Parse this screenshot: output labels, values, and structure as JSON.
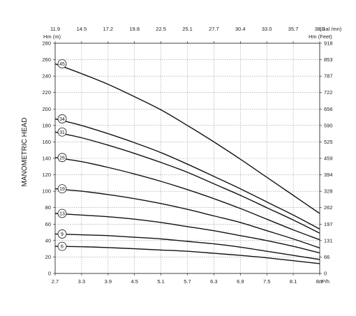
{
  "chart_data": {
    "type": "line",
    "title": "",
    "ylabel": "MANOMETRIC HEAD",
    "y_left_unit": "Hm (m)",
    "y_right_unit": "Hm (Feet)",
    "x_bottom_unit": "m³/h",
    "x_top_unit": "(Gal /mn)",
    "xlim": [
      2.7,
      8.7
    ],
    "ylim": [
      0,
      280
    ],
    "grid": true,
    "x_ticks_bottom": [
      {
        "value": 2.7,
        "label": "2.7"
      },
      {
        "value": 3.3,
        "label": "3.3"
      },
      {
        "value": 3.9,
        "label": "3.9"
      },
      {
        "value": 4.5,
        "label": "4.5"
      },
      {
        "value": 5.1,
        "label": "5.1"
      },
      {
        "value": 5.7,
        "label": "5.7"
      },
      {
        "value": 6.3,
        "label": "6.3"
      },
      {
        "value": 6.9,
        "label": "6.9"
      },
      {
        "value": 7.5,
        "label": "7.5"
      },
      {
        "value": 8.1,
        "label": "8.1"
      },
      {
        "value": 8.7,
        "label": "8.7"
      }
    ],
    "x_ticks_top": [
      "11.9",
      "14.5",
      "17.2",
      "19.8",
      "22.5",
      "25.1",
      "27.7",
      "30.4",
      "33.0",
      "35.7",
      "38.3"
    ],
    "y_ticks_left": [
      "0",
      "20",
      "40",
      "60",
      "80",
      "100",
      "120",
      "140",
      "160",
      "180",
      "200",
      "220",
      "240",
      "260",
      "280"
    ],
    "y_ticks_right": [
      {
        "value": 0,
        "label": "0"
      },
      {
        "value": 20,
        "label": "66"
      },
      {
        "value": 40,
        "label": "131"
      },
      {
        "value": 60,
        "label": "197"
      },
      {
        "value": 80,
        "label": "262"
      },
      {
        "value": 100,
        "label": "328"
      },
      {
        "value": 120,
        "label": "394"
      },
      {
        "value": 140,
        "label": "459"
      },
      {
        "value": 160,
        "label": "525"
      },
      {
        "value": 180,
        "label": "590"
      },
      {
        "value": 200,
        "label": "656"
      },
      {
        "value": 220,
        "label": "722"
      },
      {
        "value": 240,
        "label": "787"
      },
      {
        "value": 260,
        "label": "853"
      },
      {
        "value": 280,
        "label": "918"
      }
    ],
    "series": [
      {
        "name": "45",
        "x": [
          2.7,
          3.3,
          3.9,
          4.5,
          5.1,
          5.7,
          6.3,
          6.9,
          7.5,
          8.1,
          8.7
        ],
        "y": [
          255,
          243,
          230,
          215,
          199,
          180,
          160,
          139,
          117,
          95,
          73
        ]
      },
      {
        "name": "34",
        "x": [
          2.7,
          3.3,
          3.9,
          4.5,
          5.1,
          5.7,
          6.3,
          6.9,
          7.5,
          8.1,
          8.7
        ],
        "y": [
          188,
          180,
          170,
          159,
          147,
          133,
          118,
          103,
          87,
          71,
          54
        ]
      },
      {
        "name": "31",
        "x": [
          2.7,
          3.3,
          3.9,
          4.5,
          5.1,
          5.7,
          6.3,
          6.9,
          7.5,
          8.1,
          8.7
        ],
        "y": [
          172,
          165,
          156,
          146,
          135,
          123,
          109,
          95,
          80,
          65,
          49
        ]
      },
      {
        "name": "26",
        "x": [
          2.7,
          3.3,
          3.9,
          4.5,
          5.1,
          5.7,
          6.3,
          6.9,
          7.5,
          8.1,
          8.7
        ],
        "y": [
          141,
          136,
          129,
          121,
          112,
          102,
          91,
          79,
          66,
          53,
          41
        ]
      },
      {
        "name": "19",
        "x": [
          2.7,
          3.3,
          3.9,
          4.5,
          5.1,
          5.7,
          6.3,
          6.9,
          7.5,
          8.1,
          8.7
        ],
        "y": [
          103,
          100,
          96,
          91,
          85,
          78,
          70,
          62,
          52,
          42,
          31
        ]
      },
      {
        "name": "13",
        "x": [
          2.7,
          3.3,
          3.9,
          4.5,
          5.1,
          5.7,
          6.3,
          6.9,
          7.5,
          8.1,
          8.7
        ],
        "y": [
          73,
          71,
          69,
          66,
          62,
          57,
          52,
          46,
          40,
          33,
          25
        ]
      },
      {
        "name": "9",
        "x": [
          2.7,
          3.3,
          3.9,
          4.5,
          5.1,
          5.7,
          6.3,
          6.9,
          7.5,
          8.1,
          8.7
        ],
        "y": [
          48,
          47,
          46,
          44,
          42,
          39,
          36,
          32,
          27,
          22,
          17
        ]
      },
      {
        "name": "6",
        "x": [
          2.7,
          3.3,
          3.9,
          4.5,
          5.1,
          5.7,
          6.3,
          6.9,
          7.5,
          8.1,
          8.7
        ],
        "y": [
          33,
          32.5,
          31.5,
          30,
          28.5,
          27,
          24.5,
          22,
          19,
          15.5,
          12
        ]
      }
    ]
  }
}
